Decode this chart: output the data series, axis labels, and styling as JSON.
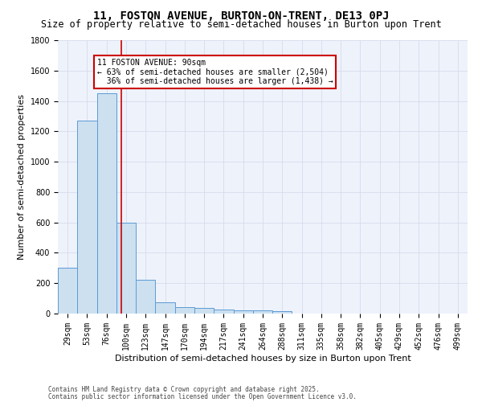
{
  "title1": "11, FOSTON AVENUE, BURTON-ON-TRENT, DE13 0PJ",
  "title2": "Size of property relative to semi-detached houses in Burton upon Trent",
  "xlabel": "Distribution of semi-detached houses by size in Burton upon Trent",
  "ylabel": "Number of semi-detached properties",
  "categories": [
    "29sqm",
    "53sqm",
    "76sqm",
    "100sqm",
    "123sqm",
    "147sqm",
    "170sqm",
    "194sqm",
    "217sqm",
    "241sqm",
    "264sqm",
    "288sqm",
    "311sqm",
    "335sqm",
    "358sqm",
    "382sqm",
    "405sqm",
    "429sqm",
    "452sqm",
    "476sqm",
    "499sqm"
  ],
  "values": [
    300,
    1270,
    1450,
    600,
    220,
    75,
    40,
    35,
    25,
    20,
    20,
    15,
    0,
    0,
    0,
    0,
    0,
    0,
    0,
    0,
    0
  ],
  "bar_color": "#cce0f0",
  "bar_edge_color": "#5b9bd5",
  "grid_color": "#d0d8e8",
  "background_color": "#eef2fb",
  "vline_x_index": 2.75,
  "vline_color": "#cc0000",
  "annotation_text": "11 FOSTON AVENUE: 90sqm\n← 63% of semi-detached houses are smaller (2,504)\n  36% of semi-detached houses are larger (1,438) →",
  "annotation_box_color": "#cc0000",
  "ylim": [
    0,
    1800
  ],
  "yticks": [
    0,
    200,
    400,
    600,
    800,
    1000,
    1200,
    1400,
    1600,
    1800
  ],
  "footer1": "Contains HM Land Registry data © Crown copyright and database right 2025.",
  "footer2": "Contains public sector information licensed under the Open Government Licence v3.0.",
  "title1_fontsize": 10,
  "title2_fontsize": 8.5,
  "tick_fontsize": 7,
  "ylabel_fontsize": 8,
  "xlabel_fontsize": 8,
  "ann_fontsize": 7,
  "footer_fontsize": 5.5
}
